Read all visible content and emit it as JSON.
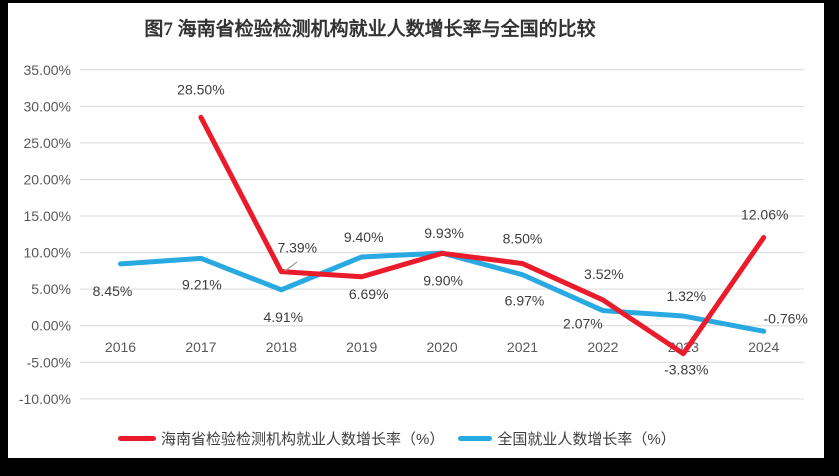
{
  "frame": {
    "border_color": "#000000",
    "canvas_color": "#ffffff"
  },
  "chart_data": {
    "type": "line",
    "title": "图7 海南省检验检测机构就业人数增长率与全国的比较",
    "categories": [
      "2016",
      "2017",
      "2018",
      "2019",
      "2020",
      "2021",
      "2022",
      "2023",
      "2024"
    ],
    "y_axis": {
      "min": -10,
      "max": 35,
      "step": 5,
      "tick_labels": [
        "35.00%",
        "30.00%",
        "25.00%",
        "20.00%",
        "15.00%",
        "10.00%",
        "5.00%",
        "0.00%",
        "-5.00%",
        "-10.00%"
      ]
    },
    "grid": true,
    "legend_position": "bottom",
    "tick_color": "#595959",
    "gridline_color": "#d9d9d9",
    "data_label_color": "#3d3d3d",
    "series": [
      {
        "name": "海南省检验检测机构就业人数增长率（%）",
        "color": "#ea1c2b",
        "values": [
          null,
          28.5,
          7.39,
          6.69,
          9.9,
          8.5,
          3.52,
          -3.83,
          12.06
        ],
        "point_labels": [
          "",
          "28.50%",
          "7.39%",
          "6.69%",
          "9.90%",
          "8.50%",
          "3.52%",
          "-3.83%",
          "12.06%"
        ]
      },
      {
        "name": "全国就业人数增长率（%）",
        "color": "#29a9e1",
        "values": [
          8.45,
          9.21,
          4.91,
          9.4,
          9.93,
          6.97,
          2.07,
          1.32,
          -0.76
        ],
        "point_labels": [
          "8.45%",
          "9.21%",
          "4.91%",
          "9.40%",
          "9.93%",
          "6.97%",
          "2.07%",
          "1.32%",
          "-0.76%"
        ]
      }
    ]
  }
}
